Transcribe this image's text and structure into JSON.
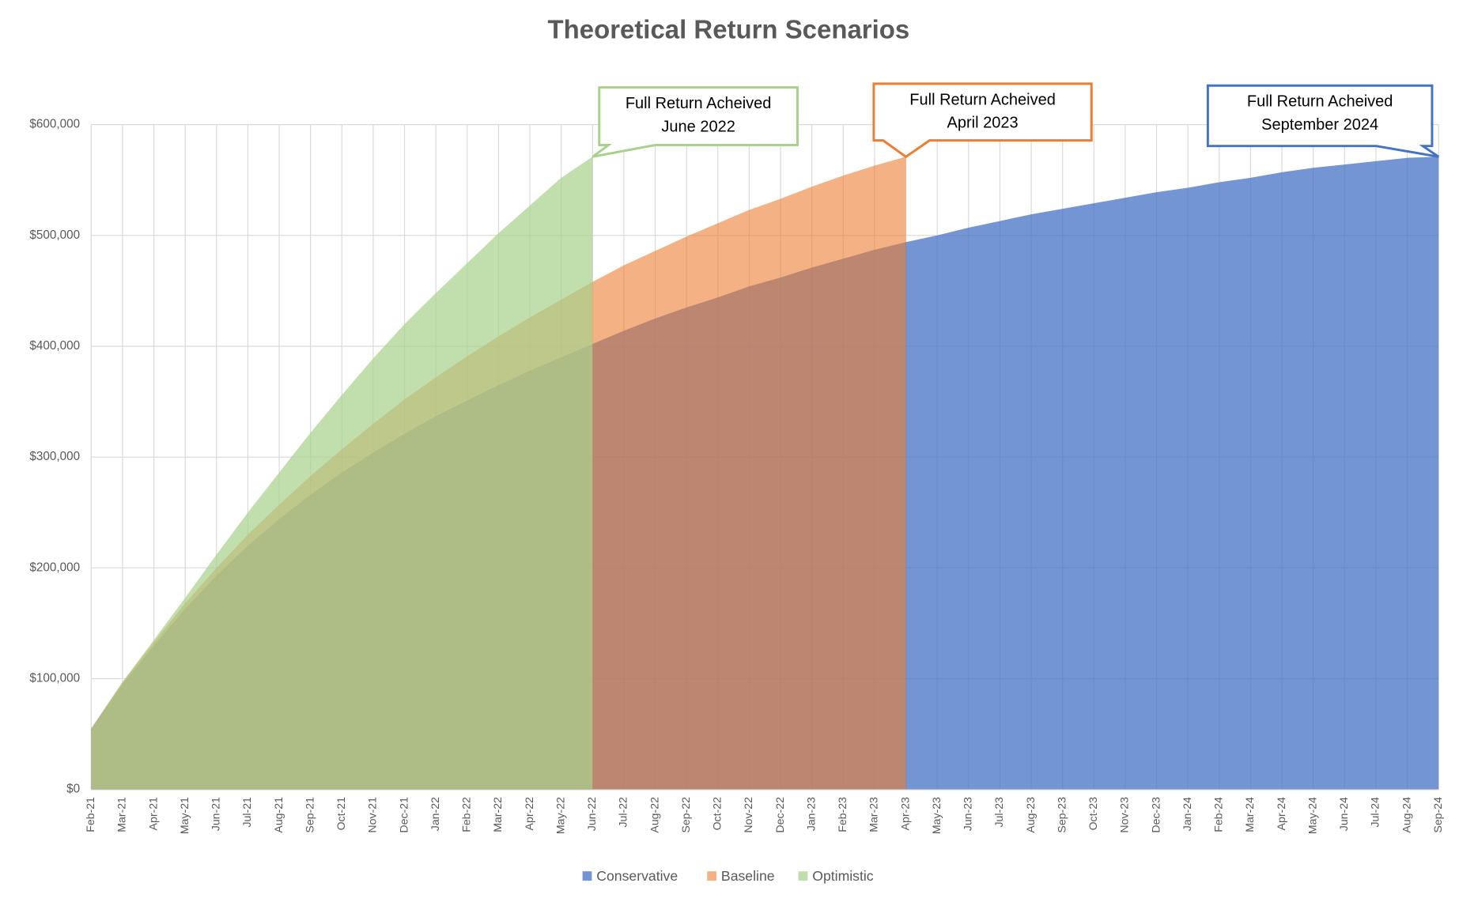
{
  "chart_data": {
    "type": "area",
    "title": "Theoretical Return Scenarios",
    "categories": [
      "Feb-21",
      "Mar-21",
      "Apr-21",
      "May-21",
      "Jun-21",
      "Jul-21",
      "Aug-21",
      "Sep-21",
      "Oct-21",
      "Nov-21",
      "Dec-21",
      "Jan-22",
      "Feb-22",
      "Mar-22",
      "Apr-22",
      "May-22",
      "Jun-22",
      "Jul-22",
      "Aug-22",
      "Sep-22",
      "Oct-22",
      "Nov-22",
      "Dec-22",
      "Jan-23",
      "Feb-23",
      "Mar-23",
      "Apr-23",
      "May-23",
      "Jun-23",
      "Jul-23",
      "Aug-23",
      "Sep-23",
      "Oct-23",
      "Nov-23",
      "Dec-23",
      "Jan-24",
      "Feb-24",
      "Mar-24",
      "Apr-24",
      "May-24",
      "Jun-24",
      "Jul-24",
      "Aug-24",
      "Sep-24"
    ],
    "series": [
      {
        "name": "Conservative",
        "color": "#4472c4",
        "annotation": [
          "Full Return Acheived",
          "September 2024"
        ],
        "values": [
          55000,
          95000,
          130000,
          163000,
          193000,
          220000,
          244000,
          266000,
          286000,
          304000,
          321000,
          337000,
          351000,
          365000,
          378000,
          390000,
          402000,
          414000,
          425000,
          435000,
          444000,
          454000,
          462000,
          471000,
          479000,
          487000,
          494000,
          500000,
          507000,
          513000,
          519000,
          524000,
          529000,
          534000,
          539000,
          543000,
          548000,
          552000,
          557000,
          561000,
          564000,
          567000,
          570000,
          571000
        ]
      },
      {
        "name": "Baseline",
        "color": "#ed7d31",
        "annotation": [
          "Full Return Acheived",
          "April 2023"
        ],
        "values": [
          55000,
          97000,
          133000,
          168000,
          200000,
          230000,
          257000,
          283000,
          307000,
          330000,
          352000,
          372000,
          391000,
          409000,
          426000,
          442000,
          458000,
          473000,
          486000,
          499000,
          511000,
          523000,
          533000,
          544000,
          554000,
          563000,
          571000,
          null,
          null,
          null,
          null,
          null,
          null,
          null,
          null,
          null,
          null,
          null,
          null,
          null,
          null,
          null,
          null,
          null
        ]
      },
      {
        "name": "Optimistic",
        "color": "#a9d18e",
        "annotation": [
          "Full Return Acheived",
          "June 2022"
        ],
        "values": [
          55000,
          97000,
          135000,
          173000,
          212000,
          250000,
          286000,
          322000,
          356000,
          389000,
          420000,
          448000,
          475000,
          502000,
          527000,
          552000,
          571000,
          null,
          null,
          null,
          null,
          null,
          null,
          null,
          null,
          null,
          null,
          null,
          null,
          null,
          null,
          null,
          null,
          null,
          null,
          null,
          null,
          null,
          null,
          null,
          null,
          null,
          null,
          null
        ]
      }
    ],
    "ylim": [
      0,
      600000
    ],
    "yticks": [
      {
        "value": 0,
        "label": "$0"
      },
      {
        "value": 100000,
        "label": "$100,000"
      },
      {
        "value": 200000,
        "label": "$200,000"
      },
      {
        "value": 300000,
        "label": "$300,000"
      },
      {
        "value": 400000,
        "label": "$400,000"
      },
      {
        "value": 500000,
        "label": "$500,000"
      },
      {
        "value": 600000,
        "label": "$600,000"
      }
    ],
    "grid": true,
    "legend": "bottom"
  }
}
